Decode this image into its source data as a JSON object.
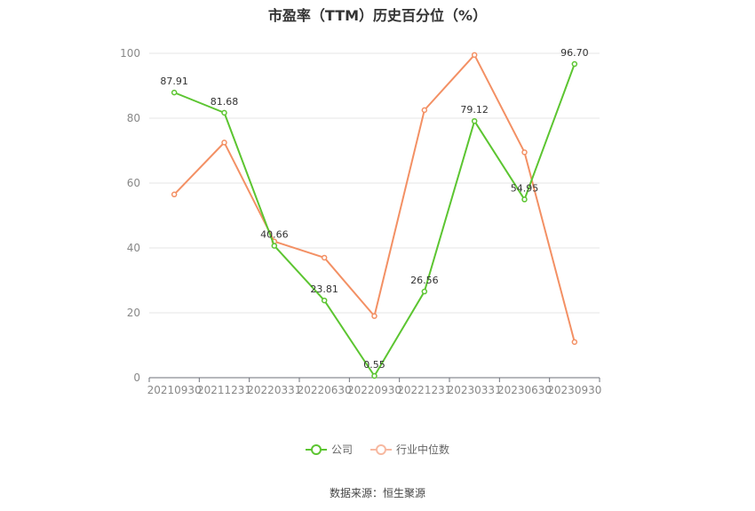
{
  "chart_data": {
    "type": "line",
    "title": "市盈率（TTM）历史百分位（%）",
    "categories": [
      "20210930",
      "20211231",
      "20220331",
      "20220630",
      "20220930",
      "20221231",
      "20230331",
      "20230630",
      "20230930"
    ],
    "ylim": [
      0,
      100
    ],
    "yticks": [
      0,
      20,
      40,
      60,
      80,
      100
    ],
    "grid": true,
    "legend_position": "bottom",
    "series": [
      {
        "name": "公司",
        "color": "#5cc531",
        "values": [
          87.91,
          81.68,
          40.66,
          23.81,
          0.55,
          26.56,
          79.12,
          54.95,
          96.7
        ],
        "labels": [
          "87.91",
          "81.68",
          "40.66",
          "23.81",
          "0.55",
          "26.56",
          "79.12",
          "54.95",
          "96.70"
        ]
      },
      {
        "name": "行业中位数",
        "color": "#f39064",
        "values": [
          56.5,
          72.5,
          42.0,
          37.0,
          19.0,
          82.5,
          99.5,
          69.5,
          11.0
        ]
      }
    ]
  },
  "legend": {
    "company": "公司",
    "industry": "行业中位数"
  },
  "source": "数据来源：恒生聚源"
}
